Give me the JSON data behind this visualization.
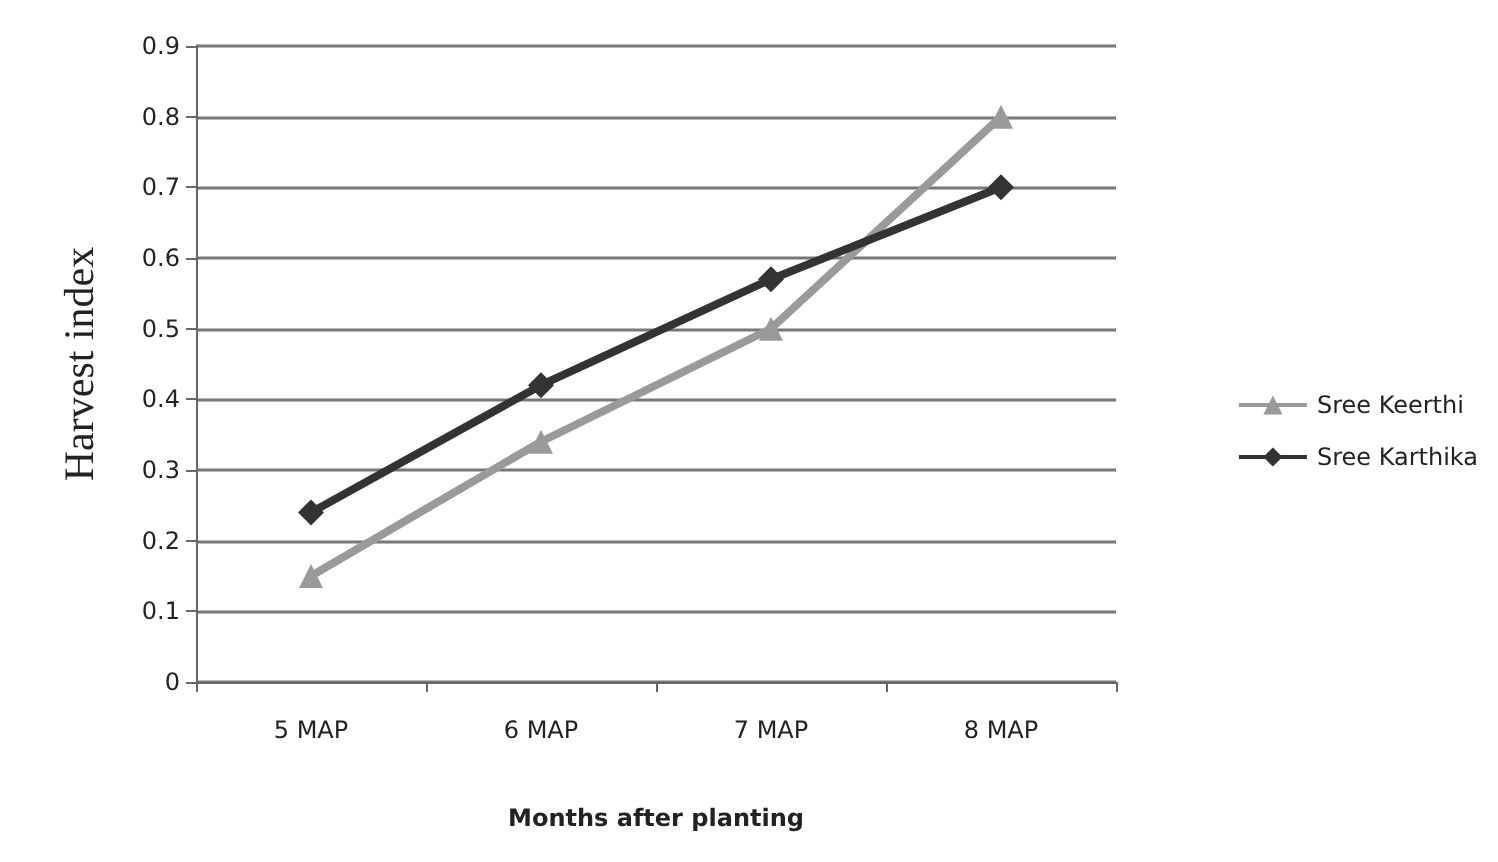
{
  "chart_data": {
    "type": "line",
    "xlabel": "Months after planting",
    "ylabel": "Harvest index",
    "categories": [
      "5 MAP",
      "6 MAP",
      "7 MAP",
      "8 MAP"
    ],
    "series": [
      {
        "name": "Sree Keerthi",
        "color": "#9a9a9a",
        "marker": "triangle",
        "values": [
          0.15,
          0.34,
          0.5,
          0.8
        ]
      },
      {
        "name": "Sree Karthika",
        "color": "#333333",
        "marker": "diamond",
        "values": [
          0.24,
          0.42,
          0.57,
          0.7
        ]
      }
    ],
    "ylim": [
      0,
      0.9
    ],
    "yticks": [
      0,
      0.1,
      0.2,
      0.3,
      0.4,
      0.5,
      0.6,
      0.7,
      0.8,
      0.9
    ],
    "grid": "y",
    "legend": "right"
  }
}
